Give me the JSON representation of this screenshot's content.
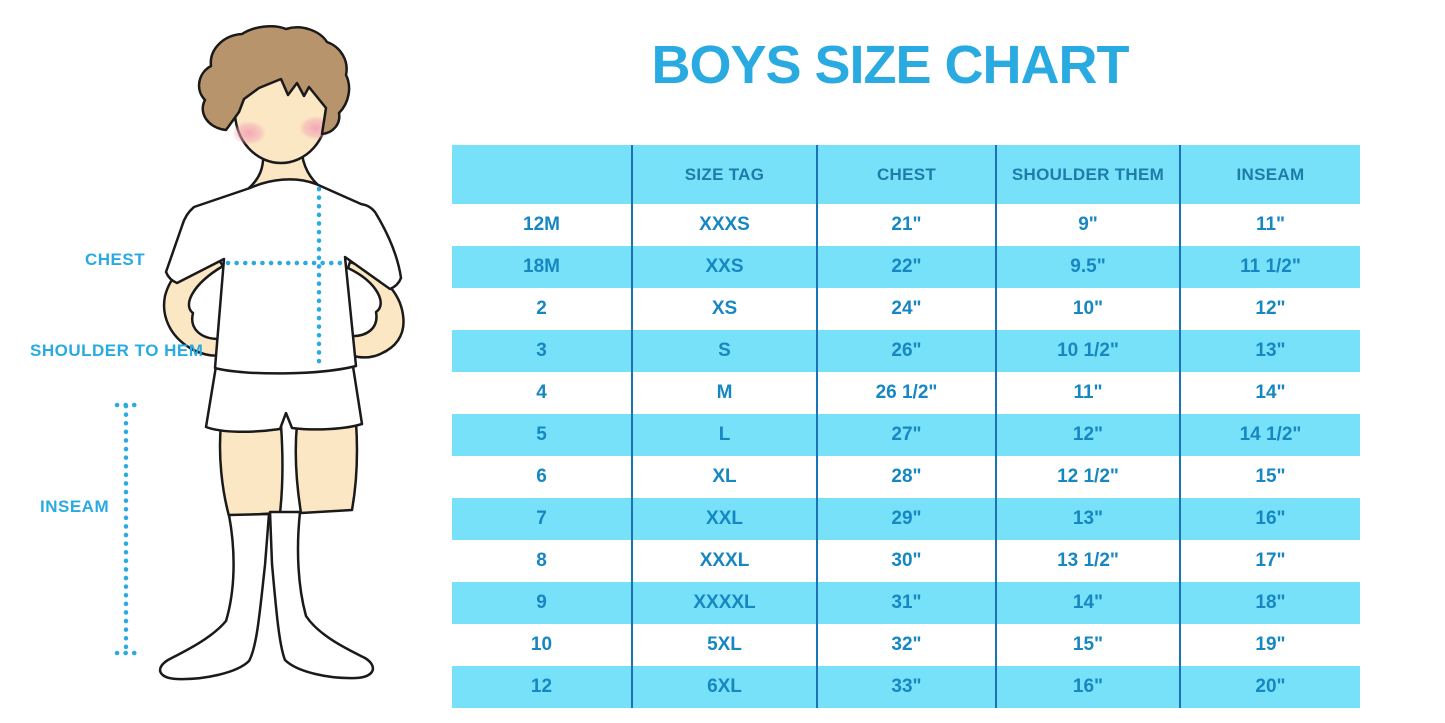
{
  "title": "BOYS SIZE CHART",
  "diagram": {
    "figure": "boy-in-tshirt-shorts-and-knee-socks",
    "labels": {
      "chest": "CHEST",
      "shoulder_to_hem": "SHOULDER TO HEM",
      "inseam": "INSEAM"
    }
  },
  "colors": {
    "accent": "#29ABE2",
    "row_highlight": "#76E1F9",
    "header_text": "#1E7CA9",
    "cell_text": "#1787C2",
    "divider": "#1973B4",
    "outline": "#1a1a1a",
    "skin": "#FBE7C4",
    "hair": "#B7946B",
    "blush": "#F2A3B4"
  },
  "chart_data": {
    "type": "table",
    "title": "BOYS SIZE CHART",
    "columns": [
      "",
      "SIZE TAG",
      "CHEST",
      "SHOULDER THEM",
      "INSEAM"
    ],
    "rows": [
      [
        "12M",
        "XXXS",
        "21\"",
        "9\"",
        "11\""
      ],
      [
        "18M",
        "XXS",
        "22\"",
        "9.5\"",
        "11 1/2\""
      ],
      [
        "2",
        "XS",
        "24\"",
        "10\"",
        "12\""
      ],
      [
        "3",
        "S",
        "26\"",
        "10 1/2\"",
        "13\""
      ],
      [
        "4",
        "M",
        "26 1/2\"",
        "11\"",
        "14\""
      ],
      [
        "5",
        "L",
        "27\"",
        "12\"",
        "14 1/2\""
      ],
      [
        "6",
        "XL",
        "28\"",
        "12 1/2\"",
        "15\""
      ],
      [
        "7",
        "XXL",
        "29\"",
        "13\"",
        "16\""
      ],
      [
        "8",
        "XXXL",
        "30\"",
        "13 1/2\"",
        "17\""
      ],
      [
        "9",
        "XXXXL",
        "31\"",
        "14\"",
        "18\""
      ],
      [
        "10",
        "5XL",
        "32\"",
        "15\"",
        "19\""
      ],
      [
        "12",
        "6XL",
        "33\"",
        "16\"",
        "20\""
      ]
    ],
    "layout": {
      "header_background": "#76E1F9",
      "row_striping": "white / cyan alternating, first data row white",
      "grid": "vertical column dividers only",
      "legend_position": "none"
    }
  }
}
